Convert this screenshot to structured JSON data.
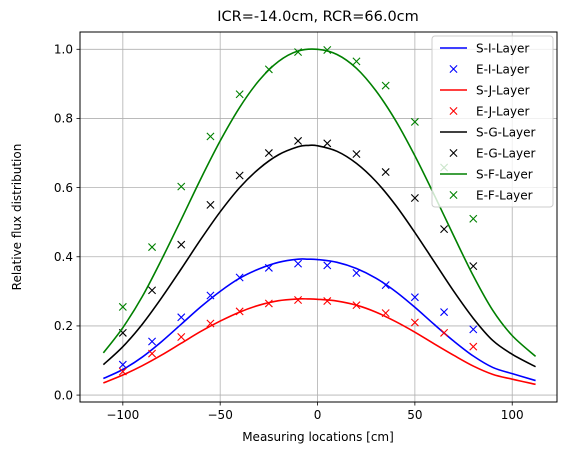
{
  "chart_data": {
    "type": "line",
    "title": "ICR=-14.0cm, RCR=66.0cm",
    "xlabel": "Measuring locations [cm]",
    "ylabel": "Relative flux distribution",
    "xlim": [
      -122,
      123
    ],
    "ylim": [
      -0.02,
      1.05
    ],
    "xticks": [
      -100,
      -50,
      0,
      50,
      100
    ],
    "yticks": [
      0.0,
      0.2,
      0.4,
      0.6,
      0.8,
      1.0
    ],
    "xtick_labels": [
      "−100",
      "−50",
      "0",
      "50",
      "100"
    ],
    "ytick_labels": [
      "0.0",
      "0.2",
      "0.4",
      "0.6",
      "0.8",
      "1.0"
    ],
    "grid": true,
    "legend_position": "top-right",
    "colors": {
      "I": "#0000ff",
      "J": "#ff0000",
      "G": "#000000",
      "F": "#008000"
    },
    "series": [
      {
        "name": "S-I-Layer",
        "kind": "line",
        "color": "#0000ff",
        "x": [
          -110,
          -100,
          -90,
          -80,
          -70,
          -60,
          -50,
          -40,
          -30,
          -20,
          -10,
          -5,
          0,
          10,
          20,
          30,
          40,
          50,
          60,
          70,
          80,
          90,
          100,
          112
        ],
        "y": [
          0.048,
          0.074,
          0.11,
          0.155,
          0.205,
          0.255,
          0.3,
          0.338,
          0.365,
          0.384,
          0.393,
          0.393,
          0.392,
          0.384,
          0.366,
          0.338,
          0.3,
          0.254,
          0.204,
          0.156,
          0.113,
          0.08,
          0.062,
          0.042
        ]
      },
      {
        "name": "E-I-Layer",
        "kind": "marker",
        "color": "#0000ff",
        "x": [
          -100,
          -85,
          -70,
          -55,
          -40,
          -25,
          -10,
          5,
          20,
          35,
          50,
          65,
          80
        ],
        "y": [
          0.088,
          0.155,
          0.225,
          0.288,
          0.34,
          0.368,
          0.38,
          0.375,
          0.353,
          0.318,
          0.283,
          0.24,
          0.19
        ]
      },
      {
        "name": "S-J-Layer",
        "kind": "line",
        "color": "#ff0000",
        "x": [
          -110,
          -100,
          -90,
          -80,
          -70,
          -60,
          -50,
          -40,
          -30,
          -20,
          -10,
          -5,
          0,
          10,
          20,
          30,
          40,
          50,
          60,
          70,
          80,
          90,
          100,
          112
        ],
        "y": [
          0.035,
          0.058,
          0.085,
          0.116,
          0.15,
          0.184,
          0.214,
          0.24,
          0.26,
          0.273,
          0.278,
          0.278,
          0.277,
          0.272,
          0.26,
          0.24,
          0.213,
          0.182,
          0.148,
          0.115,
          0.084,
          0.06,
          0.046,
          0.031
        ]
      },
      {
        "name": "E-J-Layer",
        "kind": "marker",
        "color": "#ff0000",
        "x": [
          -100,
          -85,
          -70,
          -55,
          -40,
          -25,
          -10,
          5,
          20,
          35,
          50,
          65,
          80
        ],
        "y": [
          0.068,
          0.12,
          0.168,
          0.207,
          0.242,
          0.265,
          0.275,
          0.272,
          0.26,
          0.237,
          0.21,
          0.18,
          0.14
        ]
      },
      {
        "name": "S-G-Layer",
        "kind": "line",
        "color": "#000000",
        "x": [
          -110,
          -100,
          -90,
          -80,
          -70,
          -60,
          -50,
          -40,
          -30,
          -20,
          -10,
          -5,
          0,
          10,
          20,
          30,
          40,
          50,
          60,
          70,
          80,
          90,
          100,
          112
        ],
        "y": [
          0.088,
          0.14,
          0.205,
          0.282,
          0.365,
          0.45,
          0.53,
          0.6,
          0.655,
          0.695,
          0.718,
          0.722,
          0.721,
          0.705,
          0.67,
          0.618,
          0.55,
          0.47,
          0.385,
          0.3,
          0.222,
          0.158,
          0.118,
          0.082
        ]
      },
      {
        "name": "E-G-Layer",
        "kind": "marker",
        "color": "#000000",
        "x": [
          -100,
          -85,
          -70,
          -55,
          -40,
          -25,
          -10,
          5,
          20,
          35,
          50,
          65,
          80
        ],
        "y": [
          0.18,
          0.303,
          0.435,
          0.55,
          0.635,
          0.7,
          0.735,
          0.728,
          0.697,
          0.645,
          0.57,
          0.48,
          0.373
        ]
      },
      {
        "name": "S-F-Layer",
        "kind": "line",
        "color": "#008000",
        "x": [
          -110,
          -100,
          -90,
          -80,
          -70,
          -60,
          -50,
          -40,
          -30,
          -20,
          -10,
          0,
          10,
          20,
          30,
          40,
          50,
          60,
          70,
          80,
          90,
          100,
          112
        ],
        "y": [
          0.122,
          0.195,
          0.285,
          0.393,
          0.508,
          0.625,
          0.735,
          0.832,
          0.91,
          0.965,
          0.995,
          1.0,
          0.985,
          0.945,
          0.88,
          0.795,
          0.692,
          0.578,
          0.46,
          0.345,
          0.245,
          0.172,
          0.112
        ]
      },
      {
        "name": "E-F-Layer",
        "kind": "marker",
        "color": "#008000",
        "x": [
          -100,
          -85,
          -70,
          -55,
          -40,
          -25,
          -10,
          5,
          20,
          35,
          50,
          65,
          80
        ],
        "y": [
          0.255,
          0.428,
          0.603,
          0.748,
          0.87,
          0.942,
          0.992,
          0.998,
          0.965,
          0.895,
          0.79,
          0.658,
          0.51
        ]
      }
    ]
  }
}
